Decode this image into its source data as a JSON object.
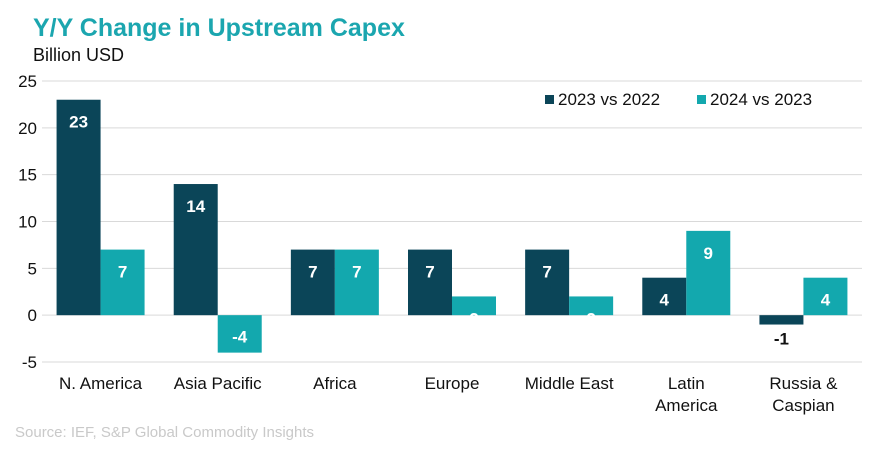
{
  "colors": {
    "title": "#1BA6AF",
    "series_2023": "#0B4558",
    "series_2024": "#13A8AE",
    "gridline": "#D9D9D9",
    "axis_text": "#111111",
    "source_text": "#C9C9C9",
    "label_light": "#FFFFFF",
    "label_dark": "#111111"
  },
  "source": "Source: IEF, S&P Global Commodity Insights",
  "chart_data": {
    "type": "bar",
    "title": "Y/Y Change in Upstream Capex",
    "subtitle": "Billion USD",
    "xlabel": "",
    "ylabel": "Billion USD",
    "ylim": [
      -5,
      25
    ],
    "yticks": [
      -5,
      0,
      5,
      10,
      15,
      20,
      25
    ],
    "grid": true,
    "legend": "top-right",
    "categories": [
      [
        "N. America"
      ],
      [
        "Asia Pacific"
      ],
      [
        "Africa"
      ],
      [
        "Europe"
      ],
      [
        "Middle East"
      ],
      [
        "Latin",
        "America"
      ],
      [
        "Russia &",
        "Caspian"
      ]
    ],
    "series": [
      {
        "name": "2023 vs 2022",
        "color": "#0B4558",
        "values": [
          23,
          14,
          7,
          7,
          7,
          4,
          -1
        ]
      },
      {
        "name": "2024 vs 2023",
        "color": "#13A8AE",
        "values": [
          7,
          -4,
          7,
          2,
          2,
          9,
          4
        ]
      }
    ]
  }
}
